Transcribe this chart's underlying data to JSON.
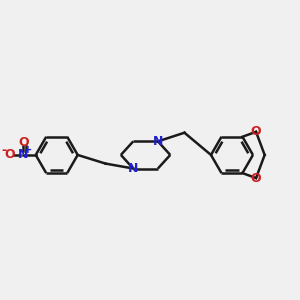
{
  "bg_color": "#f0f0f0",
  "bond_color": "#1a1a1a",
  "N_color": "#2020cc",
  "O_color": "#cc2020",
  "line_width": 1.8,
  "figsize": [
    3.0,
    3.0
  ],
  "dpi": 100,
  "xlim": [
    0,
    12
  ],
  "ylim": [
    2,
    8
  ]
}
